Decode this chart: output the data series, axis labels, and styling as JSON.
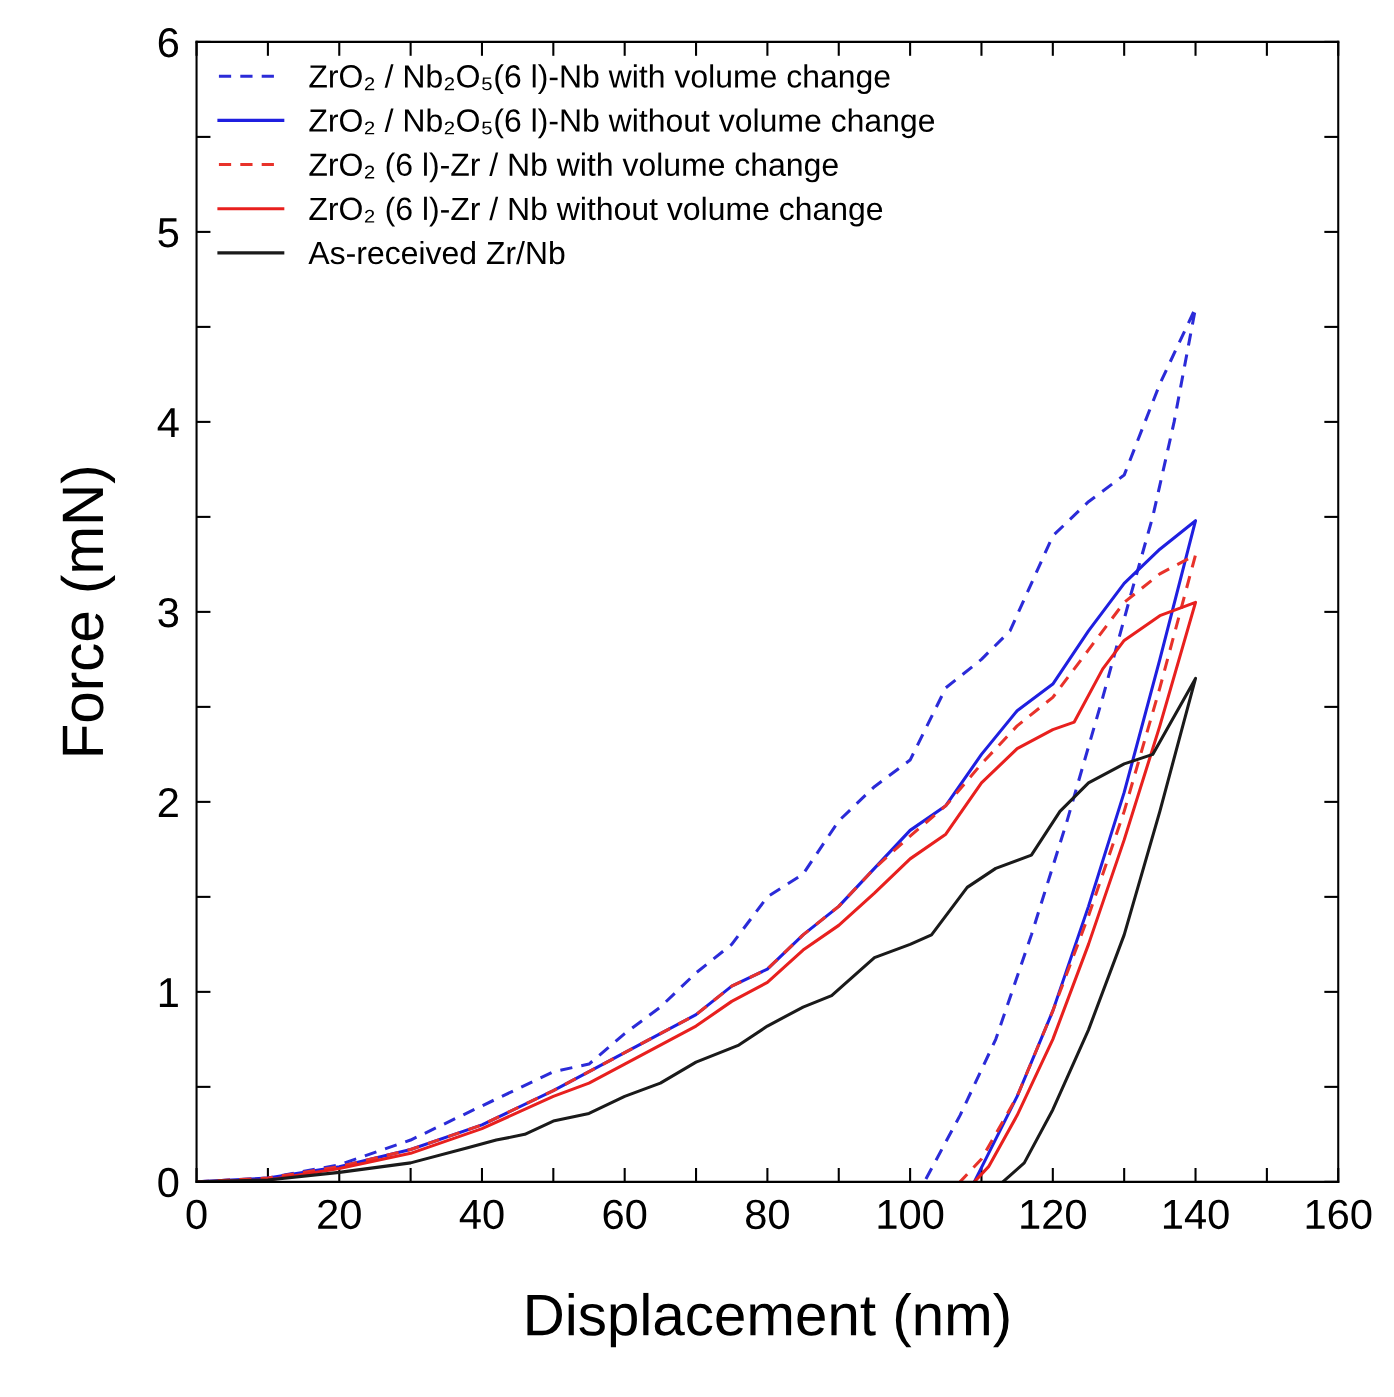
{
  "chart_data": {
    "type": "line",
    "xlabel": "Displacement (nm)",
    "ylabel": "Force (mN)",
    "xlim": [
      0,
      160
    ],
    "ylim": [
      0,
      6
    ],
    "xticks": [
      0,
      {
        "value": 10,
        "label": null
      },
      20,
      {
        "value": 30,
        "label": null
      },
      40,
      {
        "value": 50,
        "label": null
      },
      60,
      {
        "value": 70,
        "label": null
      },
      80,
      {
        "value": 90,
        "label": null
      },
      100,
      {
        "value": 110,
        "label": null
      },
      120,
      {
        "value": 130,
        "label": null
      },
      140,
      {
        "value": 150,
        "label": null
      },
      160
    ],
    "yticks": [
      0,
      {
        "value": 0.5,
        "label": null
      },
      1,
      {
        "value": 1.5,
        "label": null
      },
      2,
      {
        "value": 2.5,
        "label": null
      },
      3,
      {
        "value": 3.5,
        "label": null
      },
      4,
      {
        "value": 4.5,
        "label": null
      },
      5,
      {
        "value": 5.5,
        "label": null
      },
      6
    ],
    "grid": false,
    "legend": "top left",
    "marker": "none",
    "series": [
      {
        "name": "ZrO₂ / Nb₂O₅(6 l)-Nb with volume change",
        "color": "#2b2bd8",
        "line_style": "dashed",
        "x": [
          0,
          10,
          20,
          30,
          40,
          50,
          55,
          60,
          65,
          70,
          75,
          80,
          85,
          90,
          95,
          100,
          105,
          110,
          114,
          120,
          125,
          130,
          135,
          140,
          137,
          134,
          131,
          127,
          122,
          117,
          112,
          107,
          102
        ],
        "values": [
          0,
          0.02,
          0.09,
          0.22,
          0.4,
          0.58,
          0.62,
          0.78,
          0.92,
          1.1,
          1.25,
          1.5,
          1.62,
          1.9,
          2.08,
          2.22,
          2.6,
          2.75,
          2.9,
          3.4,
          3.58,
          3.72,
          4.2,
          4.6,
          4.0,
          3.5,
          3.1,
          2.55,
          1.9,
          1.3,
          0.75,
          0.35,
          0
        ]
      },
      {
        "name": "ZrO₂ / Nb₂O₅(6 l)-Nb without volume change",
        "color": "#1f1fe0",
        "line_style": "solid",
        "x": [
          0,
          10,
          20,
          30,
          40,
          50,
          60,
          65,
          70,
          75,
          80,
          85,
          90,
          95,
          100,
          105,
          110,
          115,
          120,
          125,
          130,
          135,
          140,
          135,
          130,
          125,
          120,
          115,
          111,
          109
        ],
        "values": [
          0,
          0.02,
          0.08,
          0.17,
          0.3,
          0.48,
          0.68,
          0.78,
          0.88,
          1.03,
          1.12,
          1.3,
          1.45,
          1.65,
          1.85,
          1.98,
          2.25,
          2.48,
          2.62,
          2.9,
          3.15,
          3.33,
          3.48,
          2.75,
          2.05,
          1.45,
          0.9,
          0.45,
          0.15,
          0
        ]
      },
      {
        "name": "ZrO₂ (6 l)-Zr / Nb with volume change",
        "color": "#e8322a",
        "line_style": "dashed",
        "x": [
          0,
          10,
          20,
          30,
          40,
          50,
          60,
          65,
          70,
          75,
          80,
          85,
          90,
          95,
          100,
          105,
          110,
          115,
          120,
          125,
          130,
          135,
          140,
          135,
          130,
          125,
          120,
          115,
          110,
          107
        ],
        "values": [
          0,
          0.02,
          0.08,
          0.17,
          0.3,
          0.48,
          0.68,
          0.78,
          0.88,
          1.03,
          1.12,
          1.3,
          1.45,
          1.65,
          1.82,
          1.98,
          2.2,
          2.4,
          2.55,
          2.8,
          3.05,
          3.2,
          3.3,
          2.6,
          1.95,
          1.4,
          0.9,
          0.45,
          0.12,
          0
        ]
      },
      {
        "name": "ZrO₂ (6 l)-Zr / Nb without volume change",
        "color": "#e8201e",
        "line_style": "solid",
        "x": [
          0,
          10,
          20,
          30,
          40,
          50,
          55,
          60,
          65,
          70,
          75,
          80,
          85,
          90,
          95,
          100,
          105,
          110,
          115,
          120,
          123,
          127,
          130,
          135,
          140,
          135,
          130,
          125,
          120,
          115,
          111,
          109
        ],
        "values": [
          0,
          0.01,
          0.07,
          0.15,
          0.28,
          0.45,
          0.52,
          0.62,
          0.72,
          0.82,
          0.95,
          1.05,
          1.22,
          1.35,
          1.52,
          1.7,
          1.83,
          2.1,
          2.28,
          2.38,
          2.42,
          2.7,
          2.85,
          2.98,
          3.05,
          2.4,
          1.8,
          1.25,
          0.75,
          0.35,
          0.08,
          0
        ]
      },
      {
        "name": "As-received Zr/Nb",
        "color": "#1a1a1a",
        "line_style": "solid",
        "x": [
          0,
          10,
          20,
          30,
          38,
          42,
          46,
          50,
          55,
          60,
          65,
          70,
          76,
          80,
          85,
          89,
          95,
          100,
          103,
          108,
          112,
          117,
          121,
          125,
          130,
          134,
          137,
          140,
          135,
          130,
          125,
          120,
          116,
          113
        ],
        "values": [
          0,
          0.01,
          0.05,
          0.1,
          0.18,
          0.22,
          0.25,
          0.32,
          0.36,
          0.45,
          0.52,
          0.63,
          0.72,
          0.82,
          0.92,
          0.98,
          1.18,
          1.25,
          1.3,
          1.55,
          1.65,
          1.72,
          1.95,
          2.1,
          2.2,
          2.25,
          2.45,
          2.65,
          1.95,
          1.3,
          0.8,
          0.38,
          0.1,
          0
        ]
      }
    ]
  }
}
